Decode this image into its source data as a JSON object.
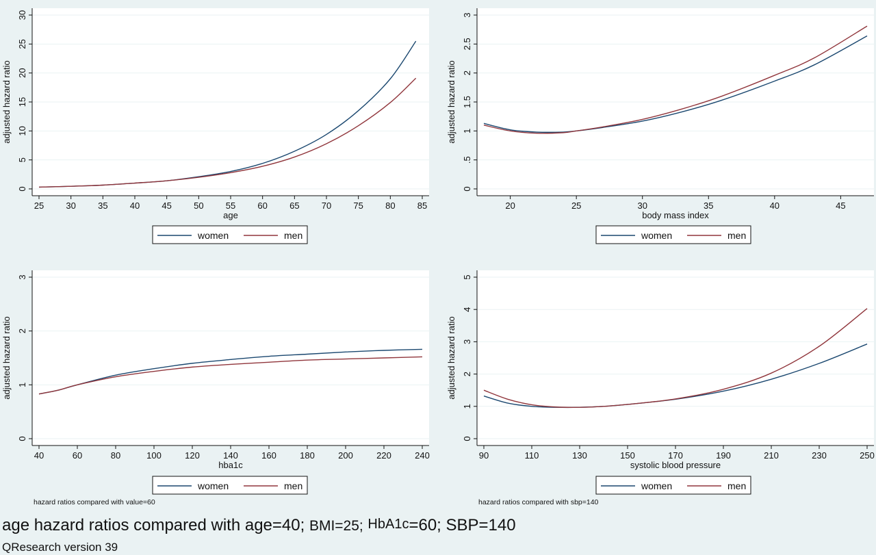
{
  "colors": {
    "women": "#1a476f",
    "men": "#90353b",
    "plot_bg": "#ffffff",
    "outer_bg": "#eaf2f3",
    "grid": "#eaf2f3"
  },
  "chart_data": [
    {
      "type": "line",
      "xlabel": "age",
      "ylabel": "adjusted hazard ratio",
      "xlim": [
        25,
        85
      ],
      "ylim": [
        0,
        30
      ],
      "xticks": [
        25,
        30,
        35,
        40,
        45,
        50,
        55,
        60,
        65,
        70,
        75,
        80,
        85
      ],
      "yticks": [
        0,
        5,
        10,
        15,
        20,
        25,
        30
      ],
      "grid": true,
      "legend": "bottom",
      "note": "",
      "series": [
        {
          "name": "women",
          "x": [
            25,
            30,
            35,
            40,
            45,
            50,
            55,
            60,
            65,
            70,
            75,
            80,
            84
          ],
          "y": [
            0.3,
            0.45,
            0.65,
            1.0,
            1.4,
            2.1,
            3.0,
            4.4,
            6.5,
            9.4,
            13.5,
            19.0,
            25.5
          ]
        },
        {
          "name": "men",
          "x": [
            25,
            30,
            35,
            40,
            45,
            50,
            55,
            60,
            65,
            70,
            75,
            80,
            84
          ],
          "y": [
            0.3,
            0.45,
            0.65,
            1.0,
            1.4,
            2.0,
            2.8,
            3.9,
            5.5,
            7.8,
            10.9,
            14.9,
            19.1
          ]
        }
      ]
    },
    {
      "type": "line",
      "xlabel": "body mass index",
      "ylabel": "adjusted hazard ratio",
      "xlim": [
        18,
        47
      ],
      "ylim": [
        0,
        3
      ],
      "xticks": [
        20,
        25,
        30,
        35,
        40,
        45
      ],
      "yticks": [
        0,
        0.5,
        1,
        1.5,
        2,
        2.5,
        3
      ],
      "ytick_labels": [
        "0",
        ".5",
        "1",
        "1.5",
        "2",
        "2.5",
        "3"
      ],
      "grid": true,
      "legend": "bottom",
      "note": "",
      "series": [
        {
          "name": "women",
          "x": [
            18,
            20,
            22,
            24,
            25,
            27,
            30,
            33,
            36,
            40,
            43,
            47
          ],
          "y": [
            1.13,
            1.02,
            0.98,
            0.98,
            1.0,
            1.06,
            1.17,
            1.33,
            1.53,
            1.86,
            2.14,
            2.64
          ]
        },
        {
          "name": "men",
          "x": [
            18,
            20,
            22,
            24,
            25,
            27,
            30,
            33,
            36,
            40,
            43,
            47
          ],
          "y": [
            1.1,
            1.0,
            0.96,
            0.97,
            1.0,
            1.07,
            1.2,
            1.38,
            1.6,
            1.96,
            2.26,
            2.81
          ]
        }
      ]
    },
    {
      "type": "line",
      "xlabel": "hba1c",
      "ylabel": "adjusted hazard ratio",
      "xlim": [
        40,
        240
      ],
      "ylim": [
        0,
        3
      ],
      "xticks": [
        40,
        60,
        80,
        100,
        120,
        140,
        160,
        180,
        200,
        220,
        240
      ],
      "yticks": [
        0,
        1,
        2,
        3
      ],
      "grid": true,
      "legend": "bottom",
      "note": "hazard ratios compared with value=60",
      "series": [
        {
          "name": "women",
          "x": [
            40,
            50,
            60,
            80,
            100,
            120,
            140,
            160,
            180,
            200,
            220,
            240
          ],
          "y": [
            0.83,
            0.9,
            1.0,
            1.18,
            1.3,
            1.4,
            1.47,
            1.53,
            1.57,
            1.61,
            1.64,
            1.66
          ]
        },
        {
          "name": "men",
          "x": [
            40,
            50,
            60,
            80,
            100,
            120,
            140,
            160,
            180,
            200,
            220,
            240
          ],
          "y": [
            0.83,
            0.9,
            1.0,
            1.15,
            1.25,
            1.33,
            1.38,
            1.42,
            1.46,
            1.48,
            1.5,
            1.52
          ]
        }
      ]
    },
    {
      "type": "line",
      "xlabel": "systolic blood pressure",
      "ylabel": "adjusted hazard ratio",
      "xlim": [
        90,
        250
      ],
      "ylim": [
        0,
        5
      ],
      "xticks": [
        90,
        110,
        130,
        150,
        170,
        190,
        210,
        230,
        250
      ],
      "yticks": [
        0,
        1,
        2,
        3,
        4,
        5
      ],
      "grid": true,
      "legend": "bottom",
      "note": "hazard ratios compared with sbp=140",
      "series": [
        {
          "name": "women",
          "x": [
            90,
            100,
            110,
            120,
            130,
            140,
            150,
            170,
            190,
            210,
            230,
            250
          ],
          "y": [
            1.32,
            1.1,
            1.0,
            0.97,
            0.97,
            1.0,
            1.06,
            1.22,
            1.47,
            1.84,
            2.33,
            2.93
          ]
        },
        {
          "name": "men",
          "x": [
            90,
            100,
            110,
            120,
            130,
            140,
            150,
            170,
            190,
            210,
            230,
            250
          ],
          "y": [
            1.5,
            1.22,
            1.05,
            0.98,
            0.97,
            1.0,
            1.06,
            1.23,
            1.53,
            2.03,
            2.86,
            4.03
          ]
        }
      ]
    }
  ],
  "caption": {
    "part1": "age hazard ratios compared with age=40;",
    "bmi": "BMI=25;",
    "hba1c": "HbA1c",
    "rest": "=60; SBP=140",
    "version": "QResearch version 39"
  }
}
